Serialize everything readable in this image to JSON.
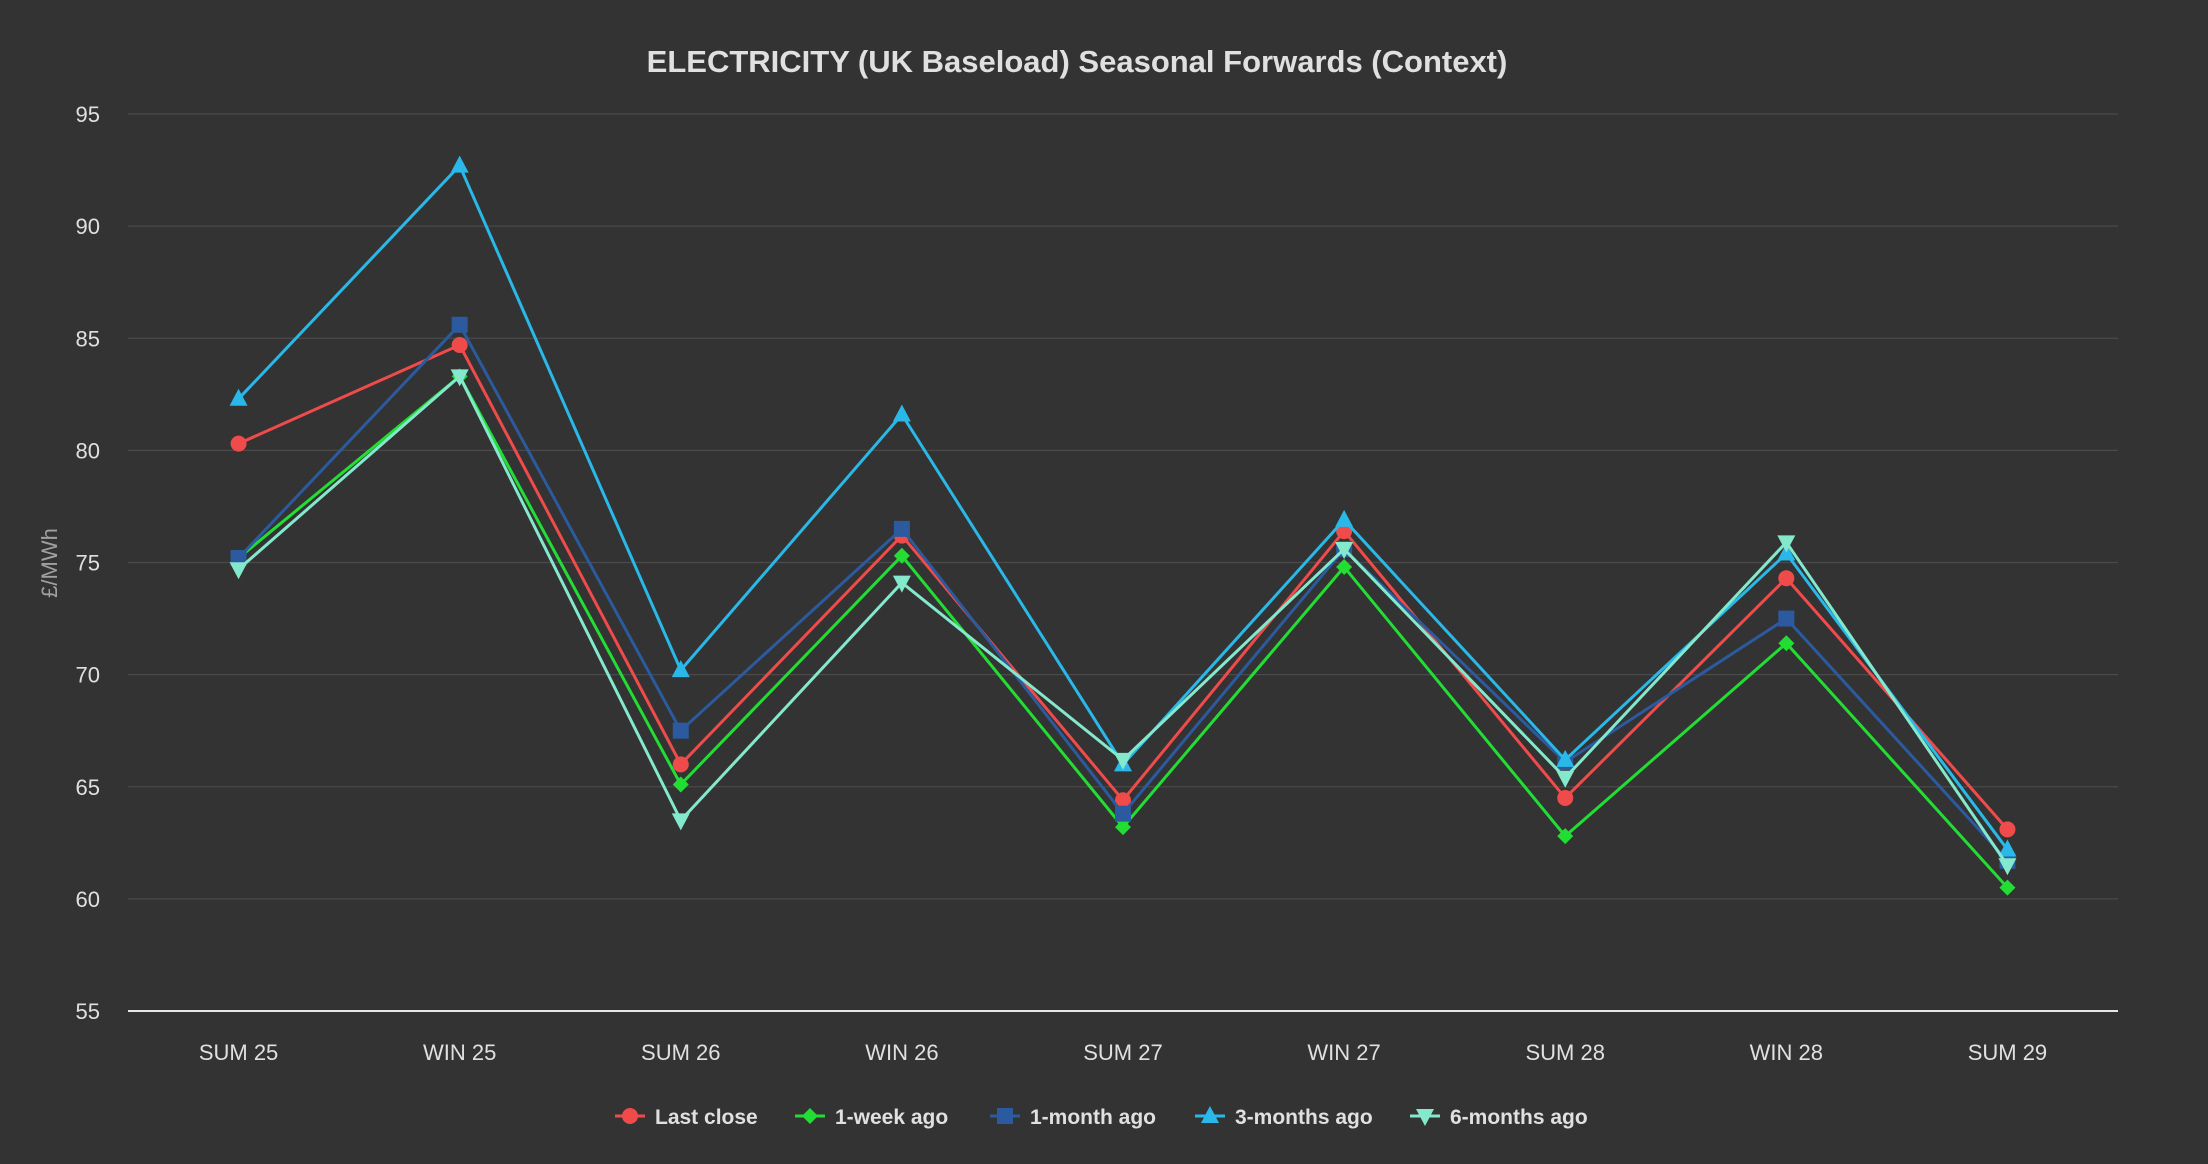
{
  "chart_data": {
    "type": "line",
    "title": "ELECTRICITY (UK Baseload) Seasonal Forwards (Context)",
    "xlabel": "",
    "ylabel": "£/MWh",
    "ylim": [
      55,
      95
    ],
    "yticks": [
      "55",
      "60",
      "65",
      "70",
      "75",
      "80",
      "85",
      "90",
      "95"
    ],
    "categories": [
      "SUM 25",
      "WIN 25",
      "SUM 26",
      "WIN 26",
      "SUM 27",
      "WIN 27",
      "SUM 28",
      "WIN 28",
      "SUM 29"
    ],
    "grid": true,
    "legend_position": "bottom",
    "series": [
      {
        "name": "Last close",
        "color": "#f04b4b",
        "marker": "circle",
        "values": [
          80.3,
          84.7,
          66.0,
          76.2,
          64.4,
          76.4,
          64.5,
          74.3,
          63.1
        ]
      },
      {
        "name": "1-week ago",
        "color": "#22dd33",
        "marker": "diamond",
        "values": [
          75.2,
          83.3,
          65.1,
          75.3,
          63.2,
          74.8,
          62.8,
          71.4,
          60.5
        ]
      },
      {
        "name": "1-month ago",
        "color": "#2b5a9e",
        "marker": "square",
        "values": [
          75.2,
          85.6,
          67.5,
          76.5,
          63.8,
          75.6,
          66.1,
          72.5,
          61.7
        ]
      },
      {
        "name": "3-months ago",
        "color": "#29b8e8",
        "marker": "triangle",
        "values": [
          82.3,
          92.7,
          70.2,
          81.6,
          66.0,
          76.9,
          66.2,
          75.4,
          62.2
        ]
      },
      {
        "name": "6-months ago",
        "color": "#84e8cc",
        "marker": "triangle-down",
        "values": [
          74.7,
          83.3,
          63.5,
          74.1,
          66.2,
          75.6,
          65.4,
          75.9,
          61.5
        ]
      }
    ]
  }
}
